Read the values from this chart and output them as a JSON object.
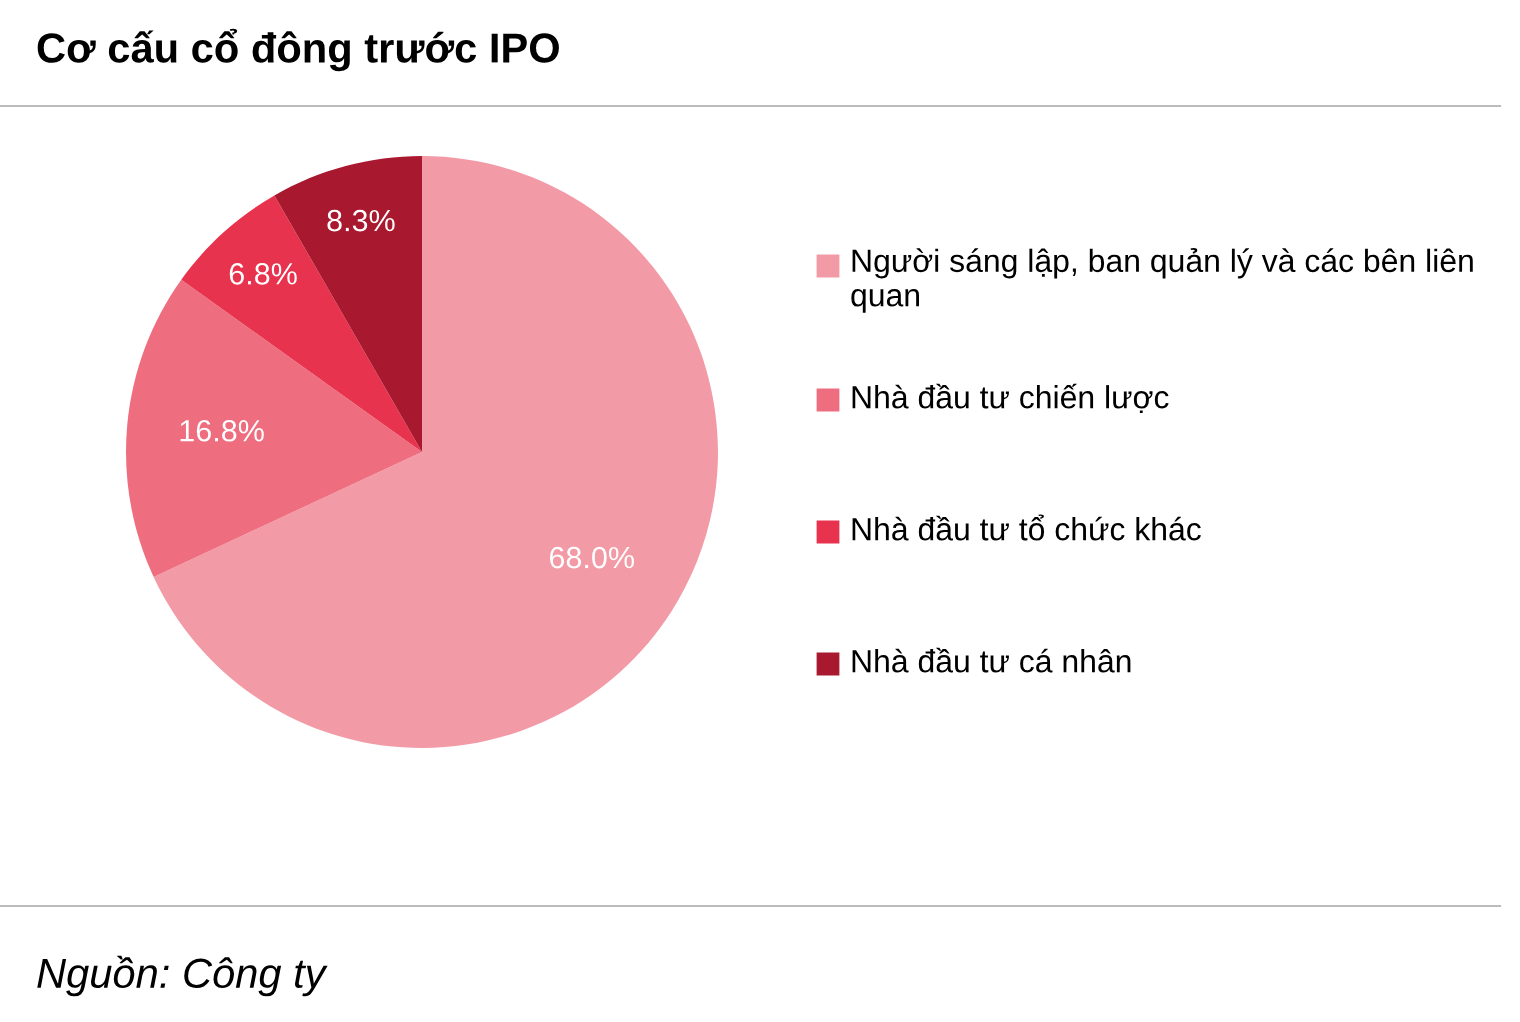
{
  "chart_data": {
    "type": "pie",
    "title": "Cơ cấu cổ đông trước IPO",
    "categories": [
      "Người sáng lập, ban quản lý và các bên liên quan",
      "Nhà đầu tư chiến lược",
      "Nhà đầu tư tổ chức khác",
      "Nhà đầu tư cá nhân"
    ],
    "values": [
      68.0,
      16.8,
      6.8,
      8.3
    ],
    "value_labels": [
      "68.0%",
      "16.8%",
      "6.8%",
      "8.3%"
    ],
    "colors": [
      "#f29aa5",
      "#ee6e80",
      "#e8334f",
      "#a8182f"
    ],
    "legend": "right",
    "annotations": [
      "Nguồn: Công ty"
    ]
  }
}
